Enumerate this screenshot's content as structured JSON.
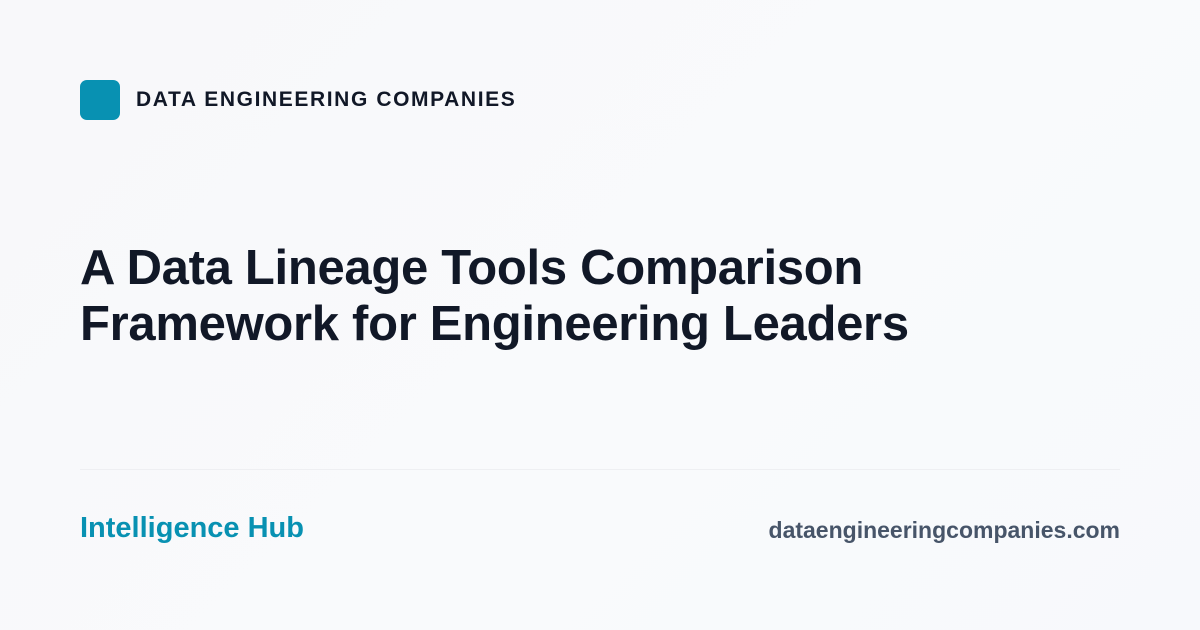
{
  "brand": {
    "name": "DATA ENGINEERING COMPANIES",
    "accent_color": "#0891b2"
  },
  "title": {
    "line1": "A Data Lineage Tools Comparison",
    "line2": "Framework for Engineering Leaders"
  },
  "footer": {
    "section": "Intelligence Hub",
    "domain": "dataengineeringcompanies.com"
  }
}
